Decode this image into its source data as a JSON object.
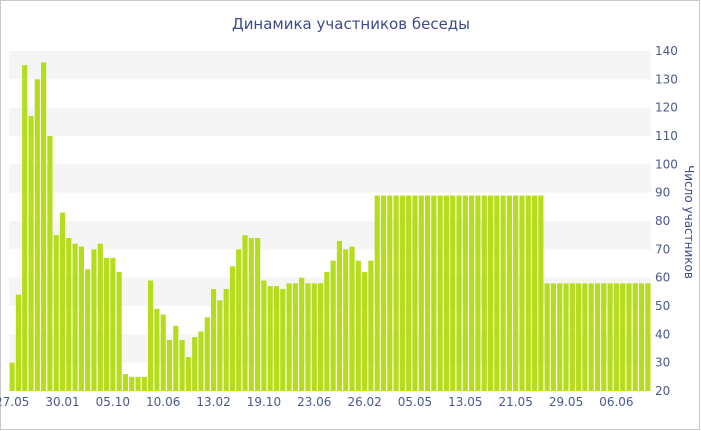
{
  "chart_data": {
    "type": "bar",
    "title": "Динамика участников беседы",
    "xlabel": "",
    "ylabel": "Число участников",
    "ylim": [
      20,
      140
    ],
    "y_ticks": [
      20,
      30,
      40,
      50,
      60,
      70,
      80,
      90,
      100,
      110,
      120,
      130,
      140
    ],
    "y_axis_side": "right",
    "grid": "alternating horizontal bands",
    "bar_color": "#b5dd1b",
    "band_color": "#f5f5f5",
    "x_tick_labels": [
      {
        "label": "27.05",
        "index": 0
      },
      {
        "label": "30.01",
        "index": 8
      },
      {
        "label": "05.10",
        "index": 16
      },
      {
        "label": "10.06",
        "index": 24
      },
      {
        "label": "13.02",
        "index": 32
      },
      {
        "label": "19.10",
        "index": 40
      },
      {
        "label": "23.06",
        "index": 48
      },
      {
        "label": "26.02",
        "index": 56
      },
      {
        "label": "05.05",
        "index": 64
      },
      {
        "label": "13.05",
        "index": 72
      },
      {
        "label": "21.05",
        "index": 80
      },
      {
        "label": "29.05",
        "index": 88
      },
      {
        "label": "06.06",
        "index": 96
      }
    ],
    "values": [
      30,
      54,
      135,
      117,
      130,
      136,
      110,
      75,
      83,
      74,
      72,
      71,
      63,
      70,
      72,
      67,
      67,
      62,
      26,
      25,
      25,
      25,
      59,
      49,
      47,
      38,
      43,
      38,
      32,
      39,
      41,
      46,
      56,
      52,
      56,
      64,
      70,
      75,
      74,
      74,
      59,
      57,
      57,
      56,
      58,
      58,
      60,
      58,
      58,
      58,
      62,
      66,
      73,
      70,
      71,
      66,
      62,
      66,
      89,
      89,
      89,
      89,
      89,
      89,
      89,
      89,
      89,
      89,
      89,
      89,
      89,
      89,
      89,
      89,
      89,
      89,
      89,
      89,
      89,
      89,
      89,
      89,
      89,
      89,
      89,
      58,
      58,
      58,
      58,
      58,
      58,
      58,
      58,
      58,
      58,
      58,
      58,
      58,
      58,
      58,
      58,
      58
    ]
  }
}
